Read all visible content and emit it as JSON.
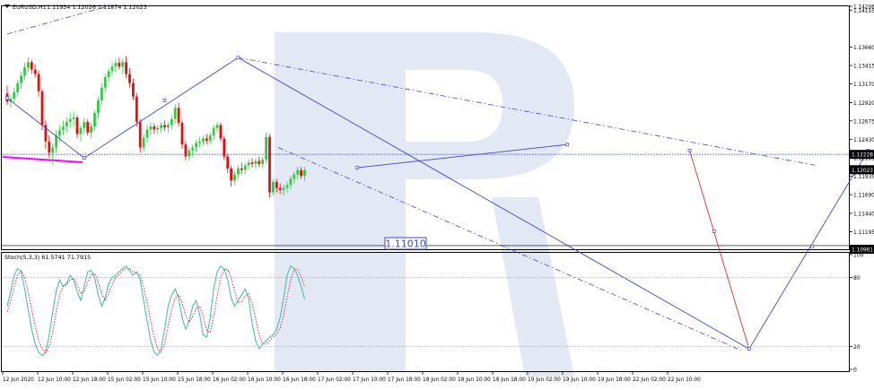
{
  "window": {
    "symbol_label": "EURUSD,H1",
    "ohlc_text": "1.11934 1.12026 1.11874 1.12023",
    "stoch_label": "Stoch(5,3,3) 61.5741 71.7915"
  },
  "annotations": {
    "target_label": "1.11010"
  },
  "colors": {
    "up_candle": "#2ecc40",
    "down_candle": "#e01010",
    "trend_line": "#3f48cc",
    "support_line": "#ff00ff",
    "forecast_line": "#e03030",
    "stoch_main": "#3cb8b0",
    "stoch_signal": "#e02020",
    "watermark": "#dfe5f3"
  },
  "chart_data": [
    {
      "type": "candlestick",
      "symbol": "EURUSD",
      "timeframe": "H1",
      "open": 1.11934,
      "high": 1.12026,
      "low": 1.11874,
      "close": 1.12023,
      "ylim": [
        1.10961,
        1.14206
      ],
      "price_ticks": [
        "1.14206",
        "1.14155",
        "1.13660",
        "1.13415",
        "1.13170",
        "1.12920",
        "1.12675",
        "1.12430",
        "1.12228",
        "1.12185",
        "1.12023",
        "1.11935",
        "1.11690",
        "1.11440",
        "1.11195",
        "1.10961"
      ],
      "time_ticks": [
        "12 Jun 2020",
        "12 Jun 10:00",
        "12 Jun 18:00",
        "15 Jun 02:00",
        "15 Jun 10:00",
        "15 Jun 18:00",
        "16 Jun 02:00",
        "16 Jun 10:00",
        "16 Jun 18:00",
        "17 Jun 02:00",
        "17 Jun 10:00",
        "17 Jun 18:00",
        "18 Jun 02:00",
        "18 Jun 10:00",
        "18 Jun 18:00",
        "19 Jun 02:00",
        "19 Jun 10:00",
        "19 Jun 18:00",
        "22 Jun 02:00",
        "22 Jun 10:00"
      ],
      "highlighted_levels": [
        1.12228,
        1.12023,
        1.10961
      ],
      "target_level": 1.1101,
      "candles": [
        [
          1.1304,
          1.1315,
          1.1289,
          1.1293
        ],
        [
          1.1293,
          1.1302,
          1.1285,
          1.1297
        ],
        [
          1.1297,
          1.1312,
          1.1292,
          1.1306
        ],
        [
          1.1306,
          1.1322,
          1.13,
          1.1318
        ],
        [
          1.1318,
          1.1333,
          1.131,
          1.1328
        ],
        [
          1.1328,
          1.1345,
          1.1322,
          1.1339
        ],
        [
          1.1339,
          1.1352,
          1.1333,
          1.1346
        ],
        [
          1.1346,
          1.1349,
          1.133,
          1.1336
        ],
        [
          1.1336,
          1.1343,
          1.1325,
          1.133
        ],
        [
          1.133,
          1.1335,
          1.13,
          1.1307
        ],
        [
          1.1307,
          1.131,
          1.1255,
          1.1262
        ],
        [
          1.1262,
          1.1268,
          1.123,
          1.124
        ],
        [
          1.124,
          1.1248,
          1.1218,
          1.1225
        ],
        [
          1.1225,
          1.1238,
          1.121,
          1.1232
        ],
        [
          1.1232,
          1.1255,
          1.1225,
          1.1248
        ],
        [
          1.1248,
          1.1262,
          1.124,
          1.1255
        ],
        [
          1.1255,
          1.1268,
          1.1248,
          1.126
        ],
        [
          1.126,
          1.1272,
          1.1252,
          1.1266
        ],
        [
          1.1266,
          1.1278,
          1.1258,
          1.127
        ],
        [
          1.127,
          1.128,
          1.126,
          1.1272
        ],
        [
          1.1272,
          1.1275,
          1.1245,
          1.125
        ],
        [
          1.125,
          1.1262,
          1.124,
          1.1258
        ],
        [
          1.1258,
          1.1272,
          1.125,
          1.1266
        ],
        [
          1.1266,
          1.127,
          1.1248,
          1.1252
        ],
        [
          1.1252,
          1.1265,
          1.1244,
          1.126
        ],
        [
          1.126,
          1.1282,
          1.1255,
          1.1278
        ],
        [
          1.1278,
          1.13,
          1.127,
          1.1295
        ],
        [
          1.1295,
          1.1318,
          1.1288,
          1.1312
        ],
        [
          1.1312,
          1.133,
          1.1305,
          1.1326
        ],
        [
          1.1326,
          1.1338,
          1.132,
          1.1334
        ],
        [
          1.1334,
          1.1346,
          1.1328,
          1.134
        ],
        [
          1.134,
          1.135,
          1.1332,
          1.1345
        ],
        [
          1.1345,
          1.1352,
          1.1336,
          1.134
        ],
        [
          1.134,
          1.135,
          1.133,
          1.1346
        ],
        [
          1.1346,
          1.1354,
          1.1325,
          1.133
        ],
        [
          1.133,
          1.1338,
          1.1312,
          1.1318
        ],
        [
          1.1318,
          1.1324,
          1.1295,
          1.13
        ],
        [
          1.13,
          1.1305,
          1.126,
          1.1266
        ],
        [
          1.1266,
          1.127,
          1.1225,
          1.1232
        ],
        [
          1.1232,
          1.125,
          1.1226,
          1.1245
        ],
        [
          1.1245,
          1.1262,
          1.1238,
          1.1256
        ],
        [
          1.1256,
          1.1265,
          1.1248,
          1.126
        ],
        [
          1.126,
          1.1264,
          1.125,
          1.1256
        ],
        [
          1.1256,
          1.1262,
          1.125,
          1.1258
        ],
        [
          1.1258,
          1.1266,
          1.1252,
          1.1262
        ],
        [
          1.1262,
          1.1268,
          1.1254,
          1.1259
        ],
        [
          1.1259,
          1.1266,
          1.1252,
          1.1262
        ],
        [
          1.1262,
          1.1276,
          1.1256,
          1.127
        ],
        [
          1.127,
          1.129,
          1.1264,
          1.1285
        ],
        [
          1.1285,
          1.1292,
          1.126,
          1.1265
        ],
        [
          1.1265,
          1.1268,
          1.123,
          1.1236
        ],
        [
          1.1236,
          1.124,
          1.1215,
          1.122
        ],
        [
          1.122,
          1.1232,
          1.1214,
          1.1228
        ],
        [
          1.1228,
          1.1236,
          1.122,
          1.1232
        ],
        [
          1.1232,
          1.1242,
          1.1226,
          1.1238
        ],
        [
          1.1238,
          1.1246,
          1.1232,
          1.124
        ],
        [
          1.124,
          1.1248,
          1.1235,
          1.1244
        ],
        [
          1.1244,
          1.125,
          1.1236,
          1.1241
        ],
        [
          1.1241,
          1.1252,
          1.1236,
          1.1248
        ],
        [
          1.1248,
          1.1262,
          1.1242,
          1.1258
        ],
        [
          1.1258,
          1.1266,
          1.1252,
          1.1262
        ],
        [
          1.1262,
          1.1265,
          1.124,
          1.1244
        ],
        [
          1.1244,
          1.1248,
          1.1215,
          1.122
        ],
        [
          1.122,
          1.1224,
          1.1198,
          1.1204
        ],
        [
          1.1204,
          1.1208,
          1.118,
          1.1188
        ],
        [
          1.1188,
          1.12,
          1.1182,
          1.1196
        ],
        [
          1.1196,
          1.1208,
          1.119,
          1.1204
        ],
        [
          1.1204,
          1.1212,
          1.1196,
          1.1202
        ],
        [
          1.1202,
          1.1212,
          1.1196,
          1.1208
        ],
        [
          1.1208,
          1.1216,
          1.1202,
          1.1212
        ],
        [
          1.1212,
          1.1218,
          1.1205,
          1.121
        ],
        [
          1.121,
          1.1218,
          1.1204,
          1.1214
        ],
        [
          1.1214,
          1.122,
          1.1206,
          1.121
        ],
        [
          1.121,
          1.122,
          1.1205,
          1.1216
        ],
        [
          1.1216,
          1.1252,
          1.1212,
          1.1246
        ],
        [
          1.1246,
          1.125,
          1.1165,
          1.1172
        ],
        [
          1.1172,
          1.119,
          1.1168,
          1.1186
        ],
        [
          1.1186,
          1.119,
          1.1172,
          1.1178
        ],
        [
          1.1178,
          1.1184,
          1.117,
          1.1175
        ],
        [
          1.1175,
          1.1182,
          1.1168,
          1.1178
        ],
        [
          1.1178,
          1.1186,
          1.1172,
          1.1182
        ],
        [
          1.1182,
          1.1194,
          1.1176,
          1.119
        ],
        [
          1.119,
          1.12,
          1.1184,
          1.1196
        ],
        [
          1.1196,
          1.1206,
          1.119,
          1.1202
        ],
        [
          1.1202,
          1.1206,
          1.119,
          1.1194
        ],
        [
          1.1194,
          1.1206,
          1.1187,
          1.1202
        ]
      ],
      "trend_lines": [
        [
          [
            0,
            1.1298
          ],
          [
            22,
            1.1218
          ],
          [
            66,
            1.1352
          ],
          [
            212,
            1.0963
          ]
        ],
        [
          [
            100,
            1.1205
          ],
          [
            160,
            1.1236
          ]
        ],
        [
          [
            212,
            1.0963
          ],
          [
            246,
            1.1228
          ]
        ],
        [
          [
            195,
            1.1228
          ],
          [
            212,
            1.0963
          ]
        ]
      ]
    },
    {
      "type": "line",
      "title": "Stoch(5,3,3)",
      "main_value": 61.5741,
      "signal_value": 71.7915,
      "ylim": [
        0,
        100
      ],
      "levels": [
        80,
        20
      ],
      "y_ticks": [
        "100",
        "80",
        "20",
        "0"
      ],
      "series": [
        {
          "values": [
            55,
            68,
            82,
            88,
            85,
            70,
            52,
            35,
            22,
            15,
            12,
            15,
            30,
            50,
            68,
            78,
            72,
            75,
            82,
            78,
            68,
            60,
            72,
            85,
            86,
            80,
            65,
            55,
            62,
            75,
            80,
            82,
            85,
            88,
            90,
            86,
            82,
            85,
            78,
            60,
            42,
            25,
            15,
            12,
            18,
            35,
            55,
            65,
            70,
            62,
            45,
            35,
            42,
            55,
            60,
            48,
            30,
            28,
            45,
            70,
            85,
            90,
            88,
            78,
            62,
            55,
            60,
            65,
            70,
            62,
            40,
            25,
            18,
            22,
            25,
            28,
            30,
            35,
            45,
            62,
            82,
            90,
            88,
            82,
            72,
            61.6
          ]
        },
        {
          "values": [
            50,
            60,
            72,
            82,
            86,
            80,
            68,
            52,
            38,
            25,
            18,
            15,
            20,
            32,
            50,
            65,
            72,
            74,
            78,
            79,
            74,
            66,
            68,
            76,
            82,
            84,
            76,
            66,
            60,
            66,
            74,
            80,
            83,
            86,
            88,
            88,
            85,
            84,
            82,
            72,
            58,
            42,
            28,
            18,
            15,
            22,
            38,
            52,
            62,
            65,
            58,
            47,
            41,
            46,
            53,
            55,
            46,
            34,
            32,
            46,
            64,
            80,
            87,
            87,
            80,
            68,
            58,
            59,
            64,
            66,
            58,
            44,
            30,
            22,
            22,
            25,
            28,
            31,
            36,
            47,
            63,
            78,
            87,
            87,
            81,
            71.8
          ]
        }
      ]
    }
  ]
}
